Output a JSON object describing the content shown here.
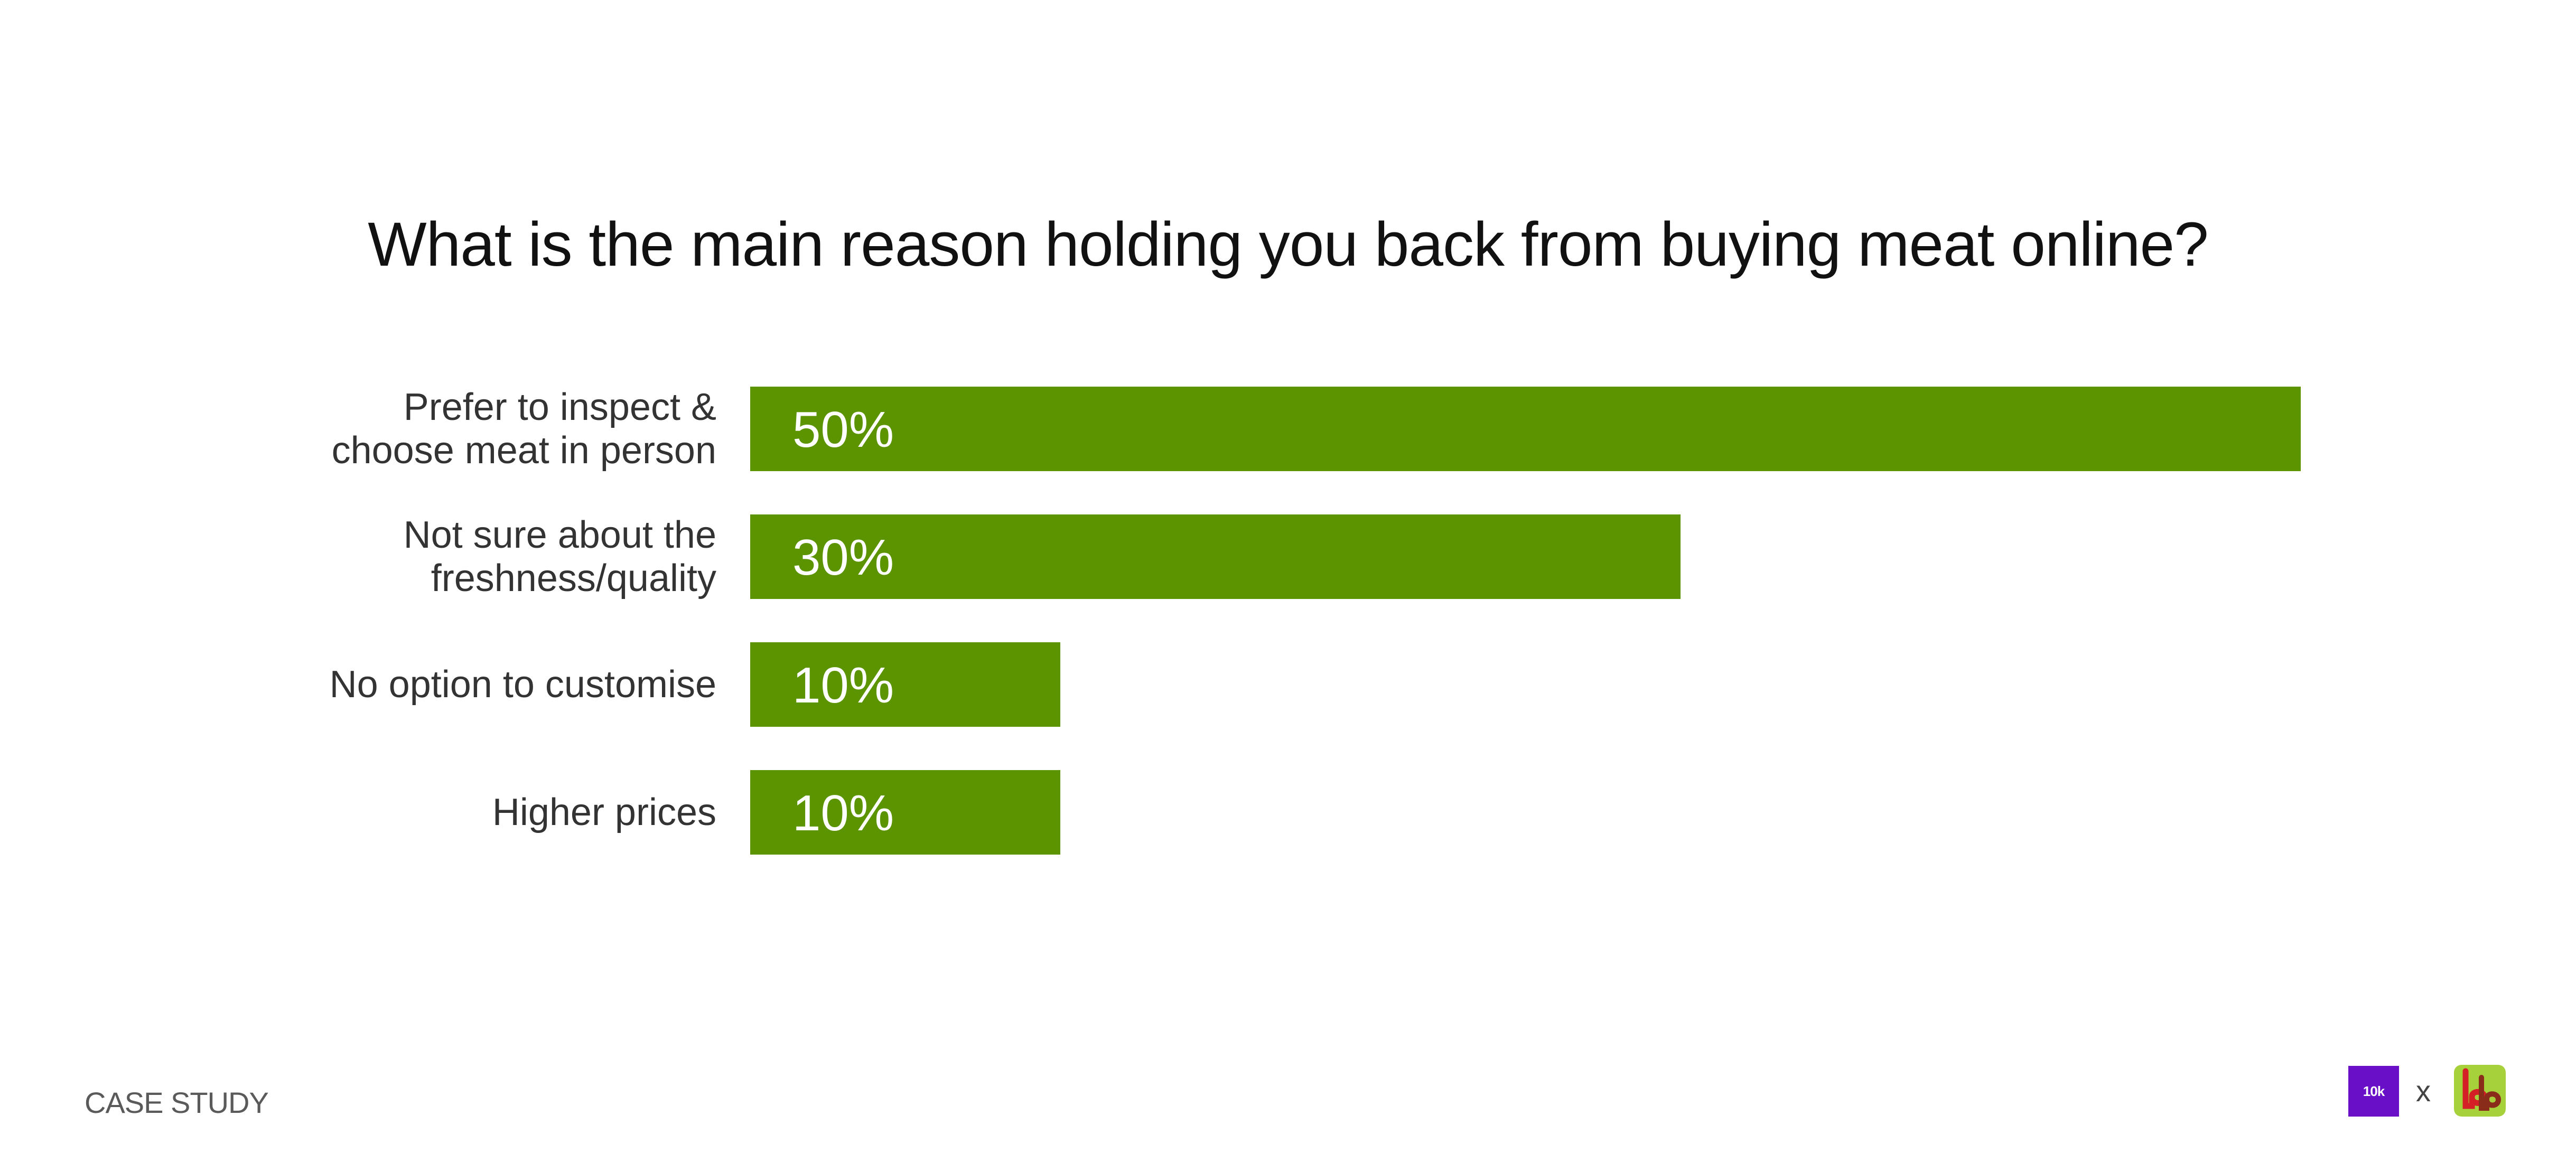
{
  "chart_data": {
    "type": "bar",
    "orientation": "horizontal",
    "title": "What is the main reason holding you back from buying meat online?",
    "categories": [
      [
        "Prefer to inspect &",
        "choose meat in person"
      ],
      [
        "Not sure about the",
        "freshness/quality"
      ],
      [
        "No option to customise"
      ],
      [
        "Higher prices"
      ]
    ],
    "values": [
      50,
      30,
      10,
      10
    ],
    "value_labels": [
      "50%",
      "30%",
      "10%",
      "10%"
    ],
    "xlim": [
      0,
      50
    ],
    "grid": false,
    "bar_color": "#5c9400",
    "label_color": "#ffffff",
    "category_color": "#333333"
  },
  "footer": {
    "label": "CASE STUDY",
    "logo_left_text": "10k",
    "logo_left_color": "#6a0fc8",
    "separator": "x",
    "logo_right_icon": "bigbasket-logo-icon",
    "logo_right_color": "#a6d13a"
  }
}
